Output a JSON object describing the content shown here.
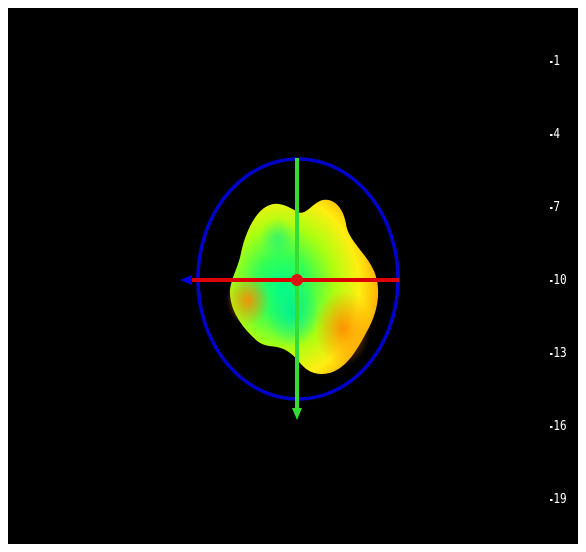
{
  "viewer": {
    "background": "#000000",
    "colors": {
      "ring": "#0000cc",
      "horizontal_axis": "#dd0000",
      "vertical_axis": "#33dd33",
      "center_marker": "#dd1111",
      "surface_low": "#00ff66",
      "surface_mid": "#ccff00",
      "surface_high": "#ff9900"
    },
    "icons": {
      "left_arrow": "left-arrow-icon",
      "down_arrow": "down-arrow-icon"
    }
  },
  "depth_scale": {
    "labels": [
      "1",
      "4",
      "7",
      "10",
      "13",
      "16",
      "19"
    ]
  }
}
